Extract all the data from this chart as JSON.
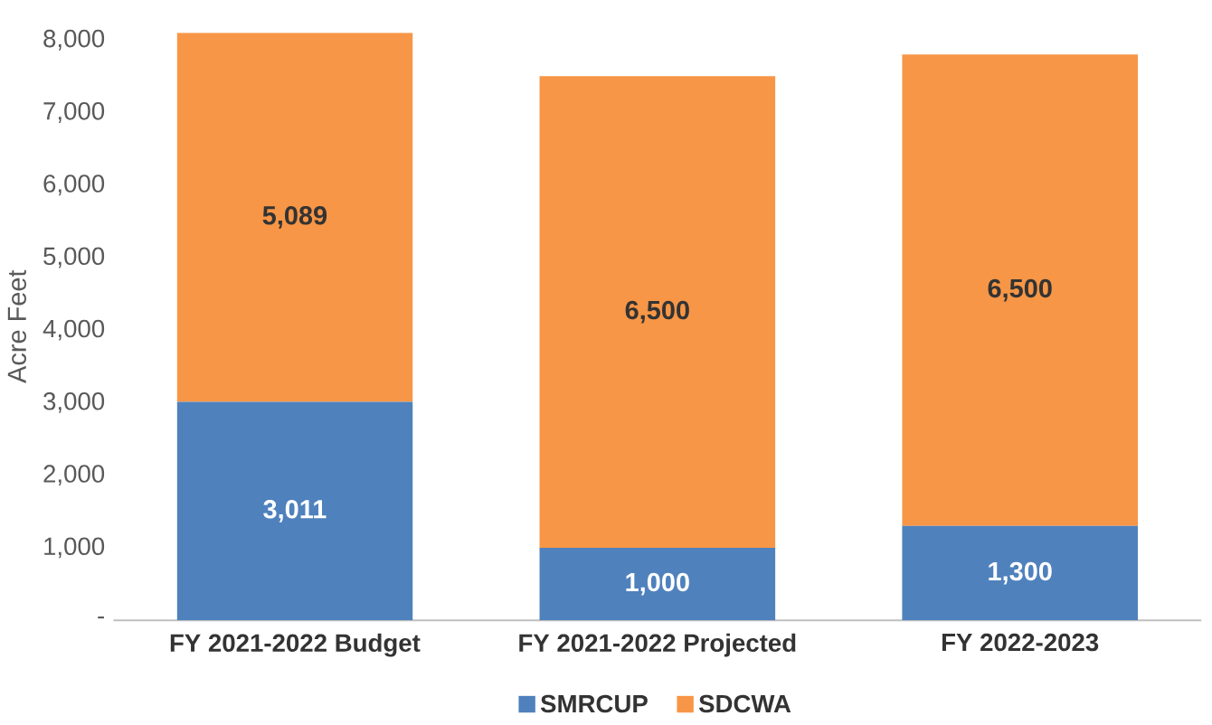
{
  "chart_data": {
    "type": "bar",
    "stacked": true,
    "ylabel": "Acre Feet",
    "categories": [
      "FY 2021-2022 Budget",
      "FY 2021-2022 Projected",
      "FY 2022-2023"
    ],
    "series": [
      {
        "name": "SMRCUP",
        "color": "#4f81bd",
        "values": [
          3011,
          1000,
          1300
        ],
        "value_labels": [
          "3,011",
          "1,000",
          "1,300"
        ]
      },
      {
        "name": "SDCWA",
        "color": "#f79646",
        "values": [
          5089,
          6500,
          6500
        ],
        "value_labels": [
          "5,089",
          "6,500",
          "6,500"
        ]
      }
    ],
    "ylim": [
      0,
      8100
    ],
    "yticks": [
      {
        "value": 0,
        "label": "-"
      },
      {
        "value": 1000,
        "label": "1,000"
      },
      {
        "value": 2000,
        "label": "2,000"
      },
      {
        "value": 3000,
        "label": "3,000"
      },
      {
        "value": 4000,
        "label": "4,000"
      },
      {
        "value": 5000,
        "label": "5,000"
      },
      {
        "value": 6000,
        "label": "6,000"
      },
      {
        "value": 7000,
        "label": "7,000"
      },
      {
        "value": 8000,
        "label": "8,000"
      }
    ],
    "grid": false,
    "legend": "bottom"
  }
}
